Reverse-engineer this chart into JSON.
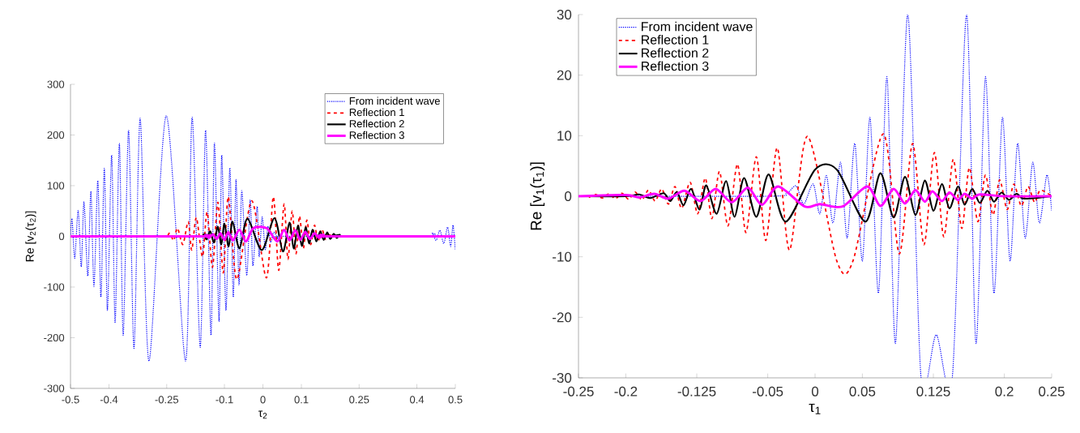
{
  "chart_data": [
    {
      "type": "line",
      "xlabel": "τ$_{2}$",
      "ylabel": "Re [v$_{2}$(τ$_{2}$)]",
      "xlim": [
        -0.5,
        0.5
      ],
      "ylim": [
        -300,
        300
      ],
      "xticks": [
        -0.5,
        -0.4,
        -0.25,
        -0.1,
        0,
        0.1,
        0.25,
        0.4,
        0.5
      ],
      "yticks": [
        -300,
        -200,
        -100,
        0,
        100,
        200,
        300
      ],
      "legend": "top right",
      "series": [
        {
          "name": "From incident wave",
          "color": "#0000ff",
          "line_style": "dotted",
          "x": [
            -0.5,
            -0.496,
            -0.489,
            -0.48,
            -0.472,
            -0.465,
            -0.455,
            -0.447,
            -0.439,
            -0.429,
            -0.421,
            -0.412,
            -0.404,
            -0.393,
            -0.384,
            -0.373,
            -0.363,
            -0.349,
            -0.335,
            -0.319,
            -0.296,
            -0.251,
            -0.201,
            -0.184,
            -0.163,
            -0.149,
            -0.135,
            -0.126,
            -0.114,
            -0.107,
            -0.096,
            -0.086,
            -0.077,
            -0.07,
            -0.062,
            -0.055,
            -0.042,
            -0.033,
            -0.026,
            -0.015,
            -0.01,
            -0.002,
            0.006,
            0.013,
            0.02,
            0.028,
            0.04,
            0.05,
            0.42,
            0.44,
            0.45,
            0.46,
            0.47,
            0.48,
            0.488,
            0.494,
            0.5
          ],
          "values": [
            0,
            35,
            -43,
            51,
            -60,
            68,
            -78,
            89,
            -99,
            110,
            -120,
            134,
            -146,
            160,
            -171,
            183,
            -195,
            209,
            -221,
            233,
            -246,
            238,
            -246,
            235,
            -219,
            209,
            -195,
            184,
            -168,
            160,
            -146,
            135,
            -120,
            112,
            -96,
            90,
            -77,
            72,
            -58,
            59,
            -40,
            38,
            -26,
            20,
            -12,
            8,
            -4,
            0,
            0,
            6,
            -8,
            12,
            -14,
            18,
            -20,
            22,
            -28
          ]
        },
        {
          "name": "Reflection 1",
          "color": "#ff0000",
          "line_style": "dashed",
          "x": [
            -0.5,
            -0.27,
            -0.243,
            -0.232,
            -0.222,
            -0.208,
            -0.194,
            -0.185,
            -0.173,
            -0.157,
            -0.145,
            -0.131,
            -0.117,
            -0.103,
            -0.09,
            -0.068,
            -0.029,
            0.009,
            0.027,
            0.041,
            0.055,
            0.065,
            0.076,
            0.086,
            0.095,
            0.105,
            0.114,
            0.124,
            0.134,
            0.143,
            0.153,
            0.163,
            0.172,
            0.2,
            0.5
          ],
          "values": [
            0,
            0,
            6,
            -8,
            16,
            -16,
            29,
            -27,
            37,
            -40,
            48,
            -61,
            67,
            -72,
            78,
            -85,
            70,
            -82,
            78,
            -67,
            64,
            -45,
            50,
            -34,
            40,
            -24,
            32,
            -16,
            22,
            -10,
            14,
            -6,
            7,
            0,
            0
          ]
        },
        {
          "name": "Reflection 2",
          "color": "#000000",
          "line_style": "solid",
          "x": [
            -0.5,
            -0.17,
            -0.155,
            -0.146,
            -0.137,
            -0.127,
            -0.117,
            -0.108,
            -0.1,
            -0.089,
            -0.079,
            -0.061,
            -0.04,
            -0.003,
            0.03,
            0.052,
            0.069,
            0.08,
            0.091,
            0.101,
            0.111,
            0.12,
            0.129,
            0.139,
            0.149,
            0.158,
            0.167,
            0.175,
            0.184,
            0.192,
            0.2,
            0.21,
            0.5
          ],
          "values": [
            0,
            0,
            4,
            -6,
            10,
            -12,
            19,
            -16,
            25,
            -20,
            29,
            -24,
            35,
            -27,
            36,
            -30,
            27,
            -24,
            21,
            -19,
            18,
            -14,
            13,
            -10,
            10,
            -7,
            8,
            -5,
            5,
            -3,
            3,
            0,
            0
          ]
        },
        {
          "name": "Reflection 3",
          "color": "#ff00ff",
          "line_style": "solid",
          "x": [
            -0.5,
            -0.16,
            -0.15,
            -0.14,
            -0.13,
            -0.12,
            -0.11,
            -0.1,
            -0.09,
            -0.078,
            -0.061,
            -0.044,
            -0.025,
            0.01,
            0.037,
            0.055,
            0.069,
            0.084,
            0.097,
            0.11,
            0.122,
            0.134,
            0.146,
            0.158,
            0.17,
            0.5
          ],
          "values": [
            0,
            0,
            2,
            -3,
            4,
            -5,
            6,
            -7,
            8,
            -8,
            13,
            -10,
            16,
            16,
            -10,
            13,
            -8,
            12,
            -7,
            9,
            -5,
            6,
            -3,
            3,
            0,
            0
          ]
        }
      ]
    },
    {
      "type": "line",
      "xlabel": "τ$_{1}$",
      "ylabel": "Re [v$_{1}$(τ$_{1}$)]",
      "xlim": [
        -0.25,
        0.25
      ],
      "ylim": [
        -30,
        30
      ],
      "xticks": [
        -0.25,
        -0.2,
        -0.125,
        -0.05,
        0,
        0.05,
        0.125,
        0.2,
        0.25
      ],
      "yticks": [
        -30,
        -20,
        -10,
        0,
        10,
        20,
        30
      ],
      "legend": "top left",
      "series": [
        {
          "name": "From incident wave",
          "color": "#0000ff",
          "line_style": "dotted",
          "x": [
            -0.25,
            -0.05,
            -0.03,
            -0.02,
            -0.012,
            -0.002,
            0.005,
            0.012,
            0.019,
            0.027,
            0.034,
            0.042,
            0.05,
            0.058,
            0.067,
            0.076,
            0.085,
            0.098,
            0.112,
            0.128,
            0.145,
            0.16,
            0.17,
            0.18,
            0.189,
            0.198,
            0.206,
            0.214,
            0.222,
            0.23,
            0.237,
            0.245,
            0.25
          ],
          "values": [
            0,
            0,
            0.5,
            1.7,
            -1.3,
            2,
            -2.9,
            3.4,
            -4.4,
            5.6,
            -6.9,
            8.7,
            -10.7,
            13,
            -16,
            19.7,
            -24.3,
            30,
            -30,
            -22.9,
            -30,
            30,
            -24.3,
            19.7,
            -16,
            13,
            -10.7,
            8.7,
            -6.9,
            5.6,
            -4.4,
            3.5,
            -2.4
          ]
        },
        {
          "name": "Reflection 1",
          "color": "#ff0000",
          "line_style": "dashed",
          "x": [
            -0.239,
            -0.232,
            -0.225,
            -0.218,
            -0.211,
            -0.204,
            -0.197,
            -0.19,
            -0.183,
            -0.176,
            -0.169,
            -0.162,
            -0.155,
            -0.148,
            -0.141,
            -0.132,
            -0.124,
            -0.116,
            -0.109,
            -0.101,
            -0.092,
            -0.082,
            -0.073,
            -0.062,
            -0.052,
            -0.04,
            -0.027,
            -0.008,
            0.023,
            0.04,
            0.072,
            0.089,
            0.103,
            0.115,
            0.126,
            0.136,
            0.146,
            0.155,
            0.163,
            0.172,
            0.18,
            0.188,
            0.195,
            0.203,
            0.21,
            0.218,
            0.225,
            0.232,
            0.238,
            0.25
          ],
          "values": [
            -0.2,
            0.3,
            -0.3,
            0.4,
            -0.4,
            0.5,
            -0.5,
            0.7,
            -0.6,
            1,
            -0.8,
            1.2,
            -1.3,
            1.6,
            -2,
            2.3,
            -2.9,
            3,
            -3.7,
            4.1,
            -4.9,
            5.3,
            -6,
            6.5,
            -7.3,
            8,
            -8.9,
            9.9,
            -10.7,
            -10.7,
            10.3,
            -9.5,
            8.7,
            -8,
            7.2,
            -6.7,
            6.1,
            -5.3,
            4.7,
            -4.2,
            3.5,
            -3.1,
            2.7,
            -2.2,
            2,
            -1.6,
            1.6,
            -1,
            1,
            0
          ]
        },
        {
          "name": "Reflection 2",
          "color": "#000000",
          "line_style": "solid",
          "x": [
            -0.25,
            -0.2,
            -0.186,
            -0.174,
            -0.16,
            -0.153,
            -0.146,
            -0.139,
            -0.131,
            -0.122,
            -0.115,
            -0.104,
            -0.094,
            -0.085,
            -0.075,
            -0.062,
            -0.049,
            -0.031,
            0,
            0.023,
            0.053,
            0.069,
            0.083,
            0.095,
            0.106,
            0.116,
            0.125,
            0.134,
            0.142,
            0.151,
            0.158,
            0.166,
            0.174,
            0.182,
            0.189,
            0.197,
            0.205,
            0.213,
            0.221,
            0.25
          ],
          "values": [
            0,
            0,
            0.3,
            -0.3,
            0.5,
            -0.8,
            0.7,
            -1.5,
            1.2,
            -2.2,
            1.8,
            -2.9,
            2.5,
            -3.4,
            3,
            -3.4,
            3.6,
            -4.2,
            4.4,
            4.4,
            -4.2,
            3.8,
            -3.5,
            3.2,
            -3.1,
            2.6,
            -2.4,
            2,
            -2,
            1.6,
            -1.4,
            1.2,
            -1.1,
            0.9,
            -0.9,
            0.6,
            -0.6,
            0.4,
            -0.4,
            0
          ]
        },
        {
          "name": "Reflection 3",
          "color": "#ff00ff",
          "line_style": "solid",
          "x": [
            -0.25,
            -0.2,
            -0.186,
            -0.17,
            -0.155,
            -0.138,
            -0.121,
            -0.105,
            -0.088,
            -0.071,
            -0.056,
            -0.039,
            -0.011,
            0.005,
            0.029,
            0.055,
            0.069,
            0.083,
            0.095,
            0.106,
            0.116,
            0.124,
            0.134,
            0.142,
            0.151,
            0.158,
            0.166,
            0.174,
            0.2,
            0.25
          ],
          "values": [
            0,
            0.2,
            -0.2,
            0.4,
            -0.4,
            0.9,
            -0.8,
            1.2,
            -1,
            1.4,
            -1.4,
            1.6,
            -1.7,
            -1.3,
            -1.7,
            1.6,
            -1.6,
            1.2,
            -1.2,
            1,
            -0.9,
            0.8,
            -0.8,
            0.6,
            -0.6,
            0.4,
            -0.4,
            0.3,
            0,
            0
          ]
        }
      ]
    }
  ]
}
